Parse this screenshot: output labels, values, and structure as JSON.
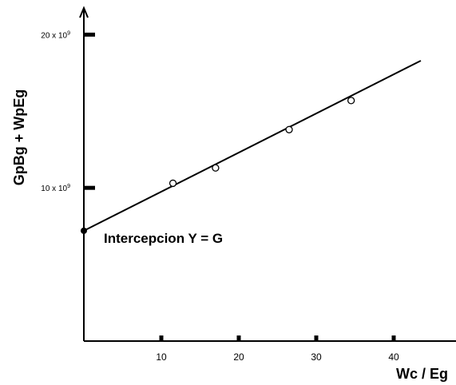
{
  "chart_data": {
    "type": "scatter",
    "xlabel": "Wc / Eg",
    "ylabel": "GpBg + WpEg",
    "x_ticks": [
      {
        "value": 10,
        "label": "10"
      },
      {
        "value": 20,
        "label": "20"
      },
      {
        "value": 30,
        "label": "30"
      },
      {
        "value": 40,
        "label": "40"
      }
    ],
    "y_ticks": [
      {
        "value": 10000000000,
        "base": "10 x 10",
        "exp": "9"
      },
      {
        "value": 20000000000,
        "base": "20 x 10",
        "exp": "9"
      }
    ],
    "xlim": [
      0,
      50
    ],
    "ylim": [
      0,
      22000000000
    ],
    "points": [
      {
        "x": 11.5,
        "y": 10300000000
      },
      {
        "x": 17.0,
        "y": 11300000000
      },
      {
        "x": 26.5,
        "y": 13800000000
      },
      {
        "x": 34.5,
        "y": 15700000000
      }
    ],
    "intercept": {
      "x": 0,
      "y": 7200000000
    },
    "fit_line": {
      "x_end": 43.5,
      "y_end": 18300000000
    },
    "annotation": "Intercepcion Y = G",
    "grid": false,
    "legend": "none"
  }
}
